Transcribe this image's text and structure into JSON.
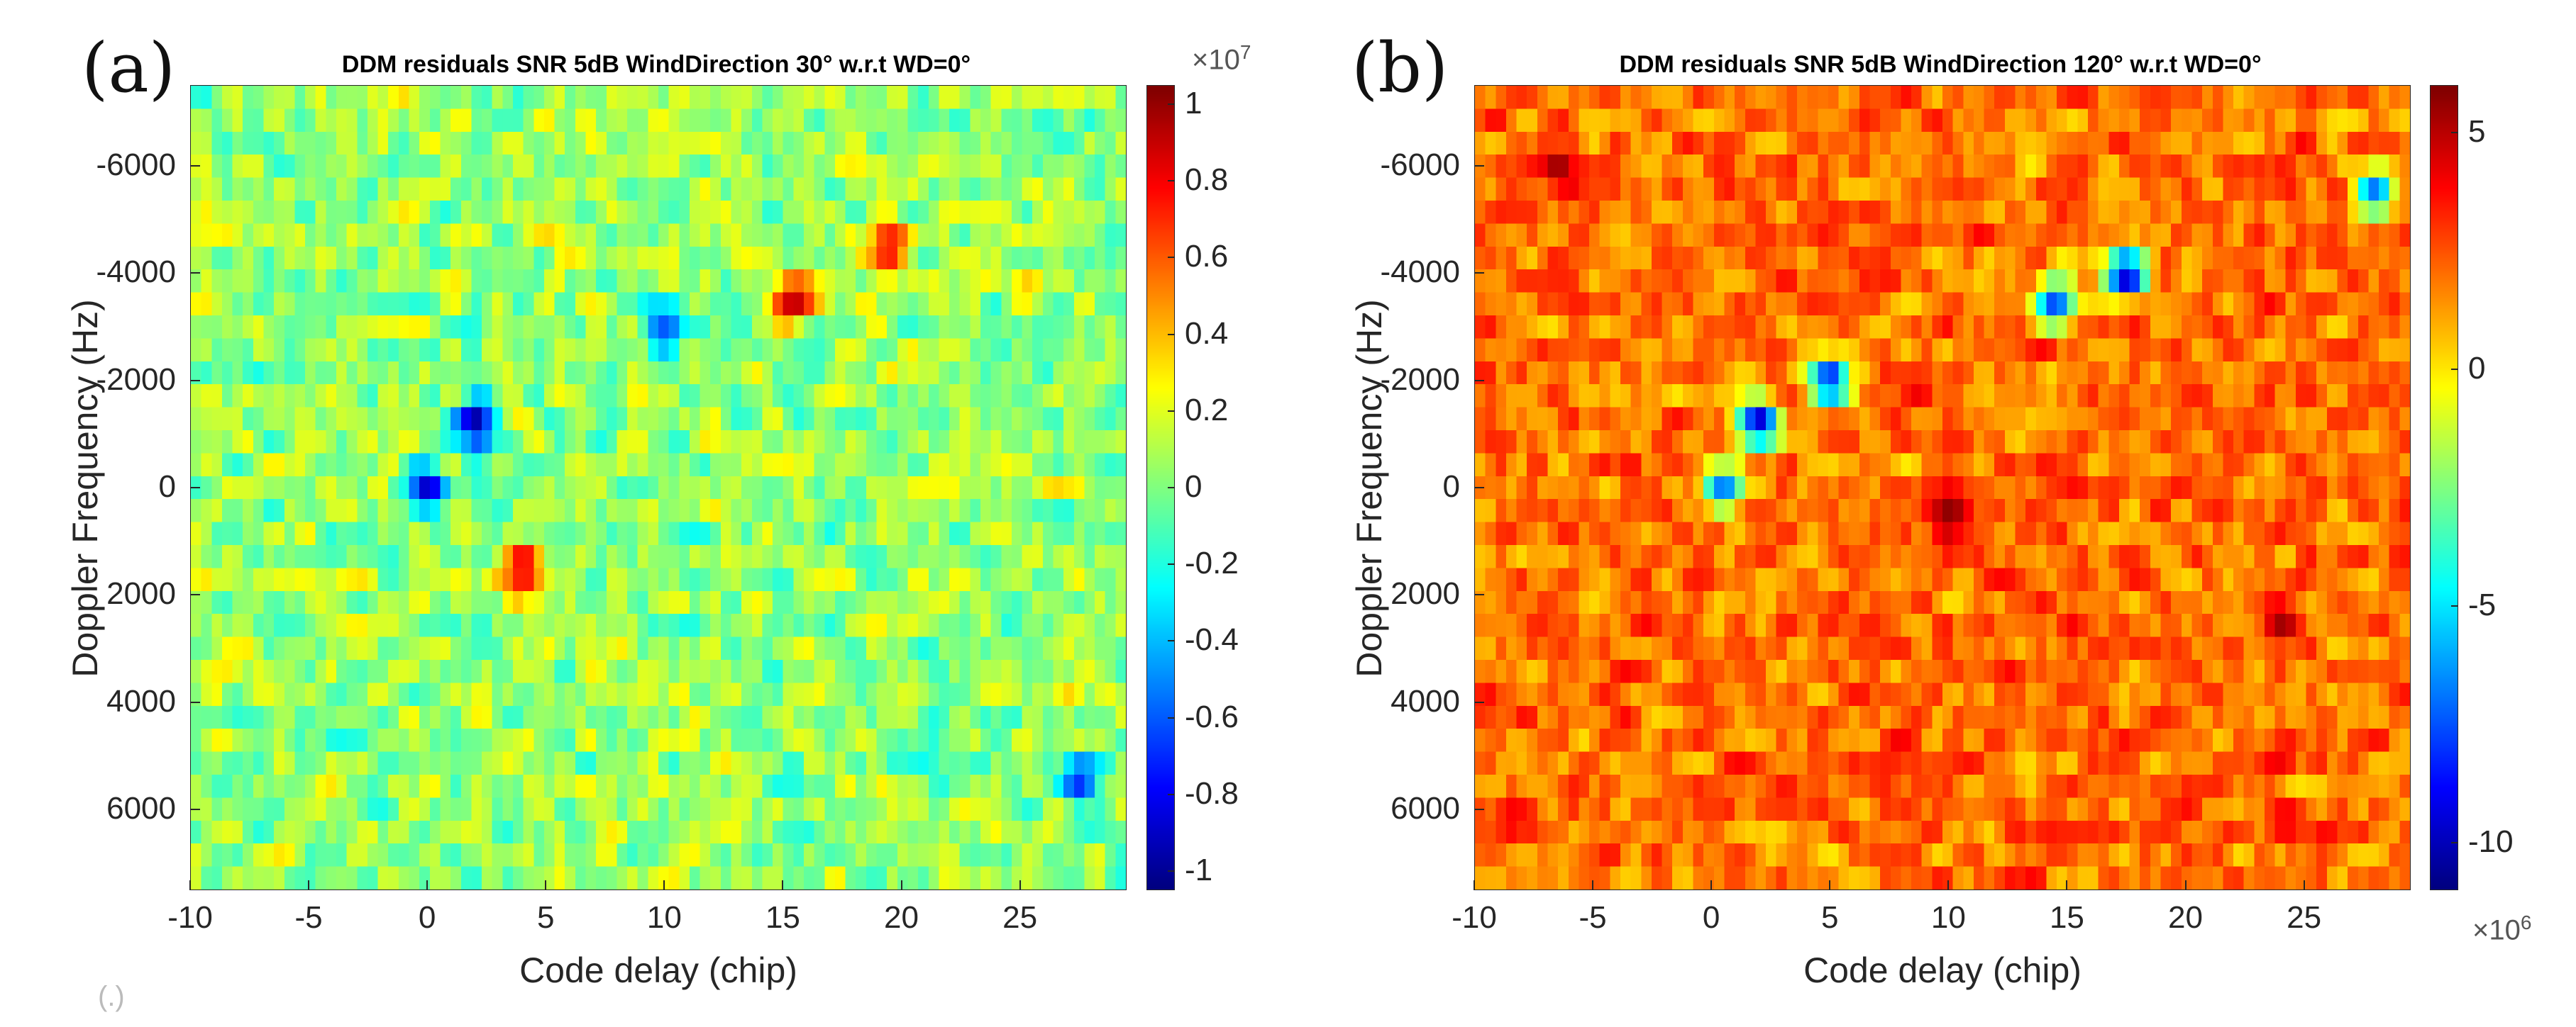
{
  "chart_data": [
    {
      "panel_label": "(a)",
      "type": "heatmap",
      "title": "DDM residuals SNR 5dB WindDirection 30° w.r.t WD=0°",
      "xlabel": "Code delay (chip)",
      "ylabel": "Doppler Frequency (Hz)",
      "xlim": [
        -10,
        29.5
      ],
      "ylim": [
        -7500,
        7500
      ],
      "x_ticks": [
        -10,
        -5,
        0,
        5,
        10,
        15,
        20,
        25
      ],
      "x_tick_labels": [
        "-10",
        "-5",
        "0",
        "5",
        "10",
        "15",
        "20",
        "25"
      ],
      "y_ticks": [
        -6000,
        -4000,
        -2000,
        0,
        2000,
        4000,
        6000
      ],
      "y_tick_labels": [
        "-6000",
        "-4000",
        "-2000",
        "0",
        "2000",
        "4000",
        "6000"
      ],
      "colormap": "jet",
      "clim": [
        -1.05,
        1.05
      ],
      "colorbar_ticks": [
        1,
        0.8,
        0.6,
        0.4,
        0.2,
        0,
        -0.2,
        -0.4,
        -0.6,
        -0.8,
        -1
      ],
      "colorbar_tick_labels": [
        "1",
        "0.8",
        "0.6",
        "0.4",
        "0.2",
        "0",
        "-0.2",
        "-0.4",
        "-0.6",
        "-0.8",
        "-1"
      ],
      "colorbar_exponent_base": "×10",
      "colorbar_exponent_power": "7",
      "baseline": 0.05,
      "noise": 0.32,
      "hotspots": [
        {
          "x": 15.5,
          "y": -3500,
          "v": 0.95
        },
        {
          "x": 19.5,
          "y": -4500,
          "v": 0.85
        },
        {
          "x": 4.0,
          "y": 1500,
          "v": 0.95
        },
        {
          "x": 2.0,
          "y": -1200,
          "v": -1.0
        },
        {
          "x": 0.0,
          "y": 0,
          "v": -0.9
        },
        {
          "x": 10.0,
          "y": -3000,
          "v": -0.6
        },
        {
          "x": 27.5,
          "y": 5500,
          "v": -0.7
        }
      ]
    },
    {
      "panel_label": "(b)",
      "type": "heatmap",
      "title": "DDM residuals SNR 5dB WindDirection 120° w.r.t WD=0°",
      "xlabel": "Code delay (chip)",
      "ylabel": "Doppler Frequency (Hz)",
      "xlim": [
        -10,
        29.5
      ],
      "ylim": [
        -7500,
        7500
      ],
      "x_ticks": [
        -10,
        -5,
        0,
        5,
        10,
        15,
        20,
        25
      ],
      "x_tick_labels": [
        "-10",
        "-5",
        "0",
        "5",
        "10",
        "15",
        "20",
        "25"
      ],
      "y_ticks": [
        -6000,
        -4000,
        -2000,
        0,
        2000,
        4000,
        6000
      ],
      "y_tick_labels": [
        "-6000",
        "-4000",
        "-2000",
        "0",
        "2000",
        "4000",
        "6000"
      ],
      "colormap": "jet",
      "clim": [
        -11,
        6
      ],
      "colorbar_ticks": [
        5,
        0,
        -5,
        -10
      ],
      "colorbar_tick_labels": [
        "5",
        "0",
        "-5",
        "-10"
      ],
      "colorbar_exponent_base": "×10",
      "colorbar_exponent_power": "6",
      "baseline": 2.0,
      "noise": 2.2,
      "hotspots": [
        {
          "x": 17.5,
          "y": -4000,
          "v": -10.5
        },
        {
          "x": 14.5,
          "y": -3500,
          "v": -8.0
        },
        {
          "x": 5.0,
          "y": -2000,
          "v": -9.0
        },
        {
          "x": 2.0,
          "y": -1200,
          "v": -10.0
        },
        {
          "x": 0.5,
          "y": 0,
          "v": -7.0
        },
        {
          "x": 28.0,
          "y": -5500,
          "v": -7.0
        },
        {
          "x": 10.0,
          "y": 500,
          "v": 5.8
        },
        {
          "x": 24.0,
          "y": 2500,
          "v": 5.5
        },
        {
          "x": -6.5,
          "y": -6000,
          "v": 5.5
        }
      ]
    }
  ],
  "stray_text": "(.)"
}
